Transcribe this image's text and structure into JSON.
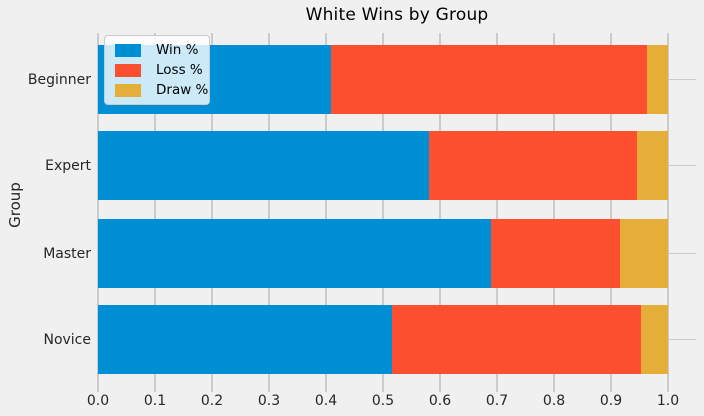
{
  "chart_data": {
    "type": "bar",
    "orientation": "horizontal",
    "stacked": true,
    "title": "White Wins by Group",
    "xlabel": "",
    "ylabel": "Group",
    "categories": [
      "Beginner",
      "Expert",
      "Master",
      "Novice"
    ],
    "series": [
      {
        "name": "Win %",
        "color": "#008fd5",
        "values": [
          0.409,
          0.58,
          0.689,
          0.515
        ]
      },
      {
        "name": "Loss %",
        "color": "#fc4f30",
        "values": [
          0.554,
          0.365,
          0.227,
          0.437
        ]
      },
      {
        "name": "Draw %",
        "color": "#e5ae38",
        "values": [
          0.037,
          0.055,
          0.084,
          0.048
        ]
      }
    ],
    "xlim": [
      0.0,
      1.05
    ],
    "xticks": [
      "0.0",
      "0.1",
      "0.2",
      "0.3",
      "0.4",
      "0.5",
      "0.6",
      "0.7",
      "0.8",
      "0.9",
      "1.0"
    ],
    "grid": true,
    "legend_position": "upper left",
    "colors": {
      "background": "#f0f0f0",
      "grid": "#cbcbcb",
      "text": "#262626",
      "title": "#000000"
    }
  }
}
